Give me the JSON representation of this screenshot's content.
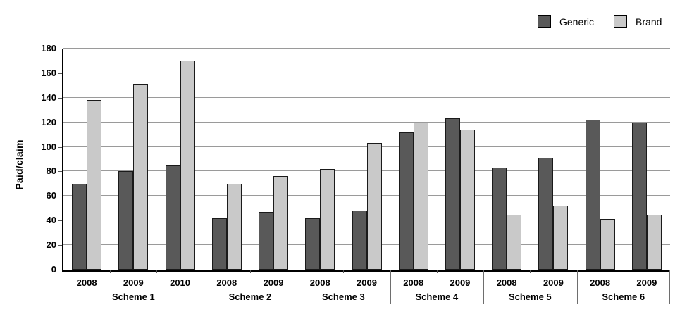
{
  "figure": {
    "background": "#ffffff"
  },
  "legend": {
    "position": "top-right",
    "items": [
      {
        "label": "Generic",
        "color": "#595959"
      },
      {
        "label": "Brand",
        "color": "#c9c9c9"
      }
    ]
  },
  "chart_data": {
    "type": "bar",
    "title": "",
    "xlabel": "",
    "ylabel": "Paid/claim",
    "ylim": [
      0,
      180
    ],
    "yticks": [
      0,
      20,
      40,
      60,
      80,
      100,
      120,
      140,
      160,
      180
    ],
    "grid": true,
    "legend_position": "top-right",
    "groups": [
      {
        "label": "Scheme 1",
        "years": [
          "2008",
          "2009",
          "2010"
        ]
      },
      {
        "label": "Scheme 2",
        "years": [
          "2008",
          "2009"
        ]
      },
      {
        "label": "Scheme 3",
        "years": [
          "2008",
          "2009"
        ]
      },
      {
        "label": "Scheme 4",
        "years": [
          "2008",
          "2009"
        ]
      },
      {
        "label": "Scheme 5",
        "years": [
          "2008",
          "2009"
        ]
      },
      {
        "label": "Scheme 6",
        "years": [
          "2008",
          "2009"
        ]
      }
    ],
    "series": [
      {
        "name": "Generic",
        "color": "#595959",
        "values": [
          70,
          80,
          85,
          42,
          47,
          42,
          48,
          112,
          123,
          83,
          91,
          122,
          120
        ]
      },
      {
        "name": "Brand",
        "color": "#c9c9c9",
        "values": [
          138,
          151,
          170,
          70,
          76,
          82,
          103,
          120,
          114,
          45,
          52,
          41,
          45
        ]
      }
    ]
  },
  "style": {
    "bar_border": "#1a1a1a",
    "gridline_color": "#9a9a9a",
    "axis_color": "#000000",
    "text_color": "#000000"
  }
}
